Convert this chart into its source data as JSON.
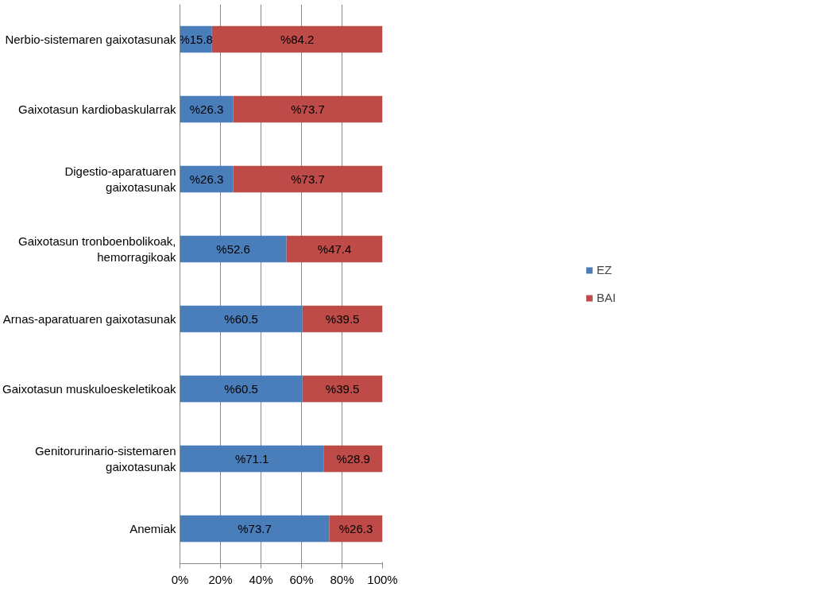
{
  "chart_data": {
    "type": "bar",
    "orientation": "horizontal",
    "stacked": true,
    "categories": [
      "Nerbio-sistemaren gaixotasunak",
      "Gaixotasun kardiobaskularrak",
      "Digestio-aparatuaren gaixotasunak",
      "Gaixotasun tronboenbolikoak, hemorragikoak",
      "Arnas-aparatuaren gaixotasunak",
      "Gaixotasun muskuloeskeletikoak",
      "Genitorurinario-sistemaren gaixotasunak",
      "Anemiak"
    ],
    "series": [
      {
        "name": "EZ",
        "color": "#4a7ebb",
        "values": [
          15.8,
          26.3,
          26.3,
          52.6,
          60.5,
          60.5,
          71.1,
          73.7
        ],
        "value_labels": [
          "%15.8",
          "%26.3",
          "%26.3",
          "%52.6",
          "%60.5",
          "%60.5",
          "%71.1",
          "%73.7"
        ]
      },
      {
        "name": "BAI",
        "color": "#be4b48",
        "values": [
          84.2,
          73.7,
          73.7,
          47.4,
          39.5,
          39.5,
          28.9,
          26.3
        ],
        "value_labels": [
          "%84.2",
          "%73.7",
          "%73.7",
          "%47.4",
          "%39.5",
          "%39.5",
          "%28.9",
          "%26.3"
        ]
      }
    ],
    "xlim": [
      0,
      100
    ],
    "xticks": [
      {
        "value": 0,
        "label": "0%"
      },
      {
        "value": 20,
        "label": "20%"
      },
      {
        "value": 40,
        "label": "40%"
      },
      {
        "value": 60,
        "label": "60%"
      },
      {
        "value": 80,
        "label": "80%"
      },
      {
        "value": 100,
        "label": "100%"
      }
    ],
    "grid": "x",
    "legend": "right"
  }
}
